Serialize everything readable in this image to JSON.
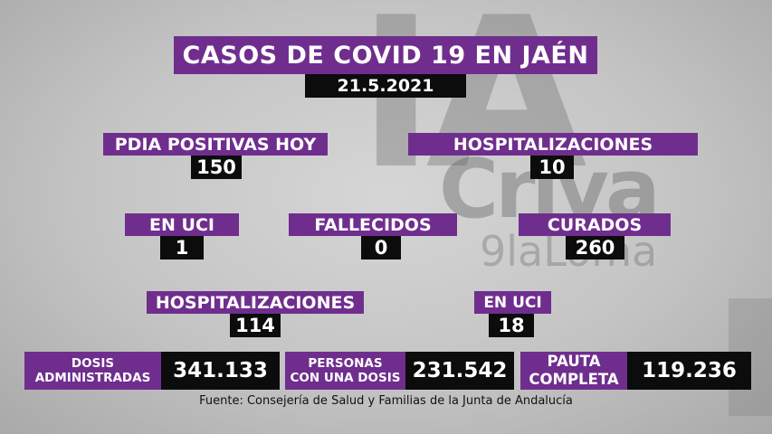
{
  "watermark": {
    "big": "IA",
    "mid": "Criva",
    "small": "9laLoma"
  },
  "title": "CASOS DE COVID 19 EN JAÉN",
  "date": "21.5.2021",
  "stats": {
    "pdia_positivas": {
      "label": "PDIA POSITIVAS HOY",
      "value": "150"
    },
    "hospitalizaciones_hoy": {
      "label": "HOSPITALIZACIONES",
      "value": "10"
    },
    "en_uci_hoy": {
      "label": "EN UCI",
      "value": "1"
    },
    "fallecidos": {
      "label": "FALLECIDOS",
      "value": "0"
    },
    "curados": {
      "label": "CURADOS",
      "value": "260"
    },
    "hospitalizaciones_total": {
      "label": "HOSPITALIZACIONES",
      "value": "114"
    },
    "en_uci_total": {
      "label": "EN UCI",
      "value": "18"
    }
  },
  "vaccination": {
    "dosis": {
      "line1": "DOSIS",
      "line2": "ADMINISTRADAS",
      "value": "341.133"
    },
    "una_dosis": {
      "line1": "PERSONAS",
      "line2": "CON UNA DOSIS",
      "value": "231.542"
    },
    "pauta": {
      "line1": "PAUTA",
      "line2": "COMPLETA",
      "value": "119.236"
    }
  },
  "footer": "Fuente: Consejería de Salud y Familias de la Junta de Andalucía",
  "colors": {
    "purple": "#6f2e8e",
    "black": "#0c0c0c",
    "background": "#c4c4c4"
  }
}
